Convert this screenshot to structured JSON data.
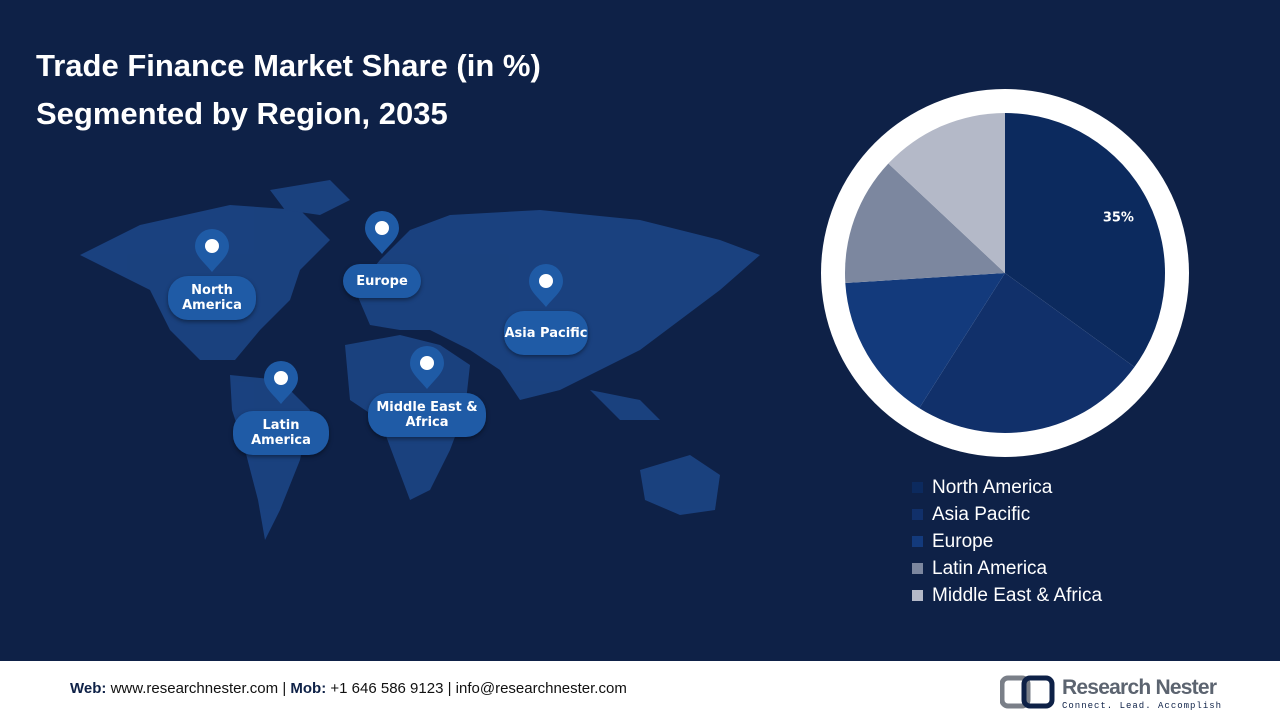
{
  "chart_data": {
    "type": "pie",
    "title": [
      "Trade Finance Market Share (in %)",
      "Segmented by Region, 2035"
    ],
    "categories": [
      "North America",
      "Asia Pacific",
      "Europe",
      "Latin America",
      "Middle East & Africa"
    ],
    "values": [
      35,
      24,
      15,
      13,
      13
    ],
    "value_labels": [
      "35%",
      null,
      null,
      null,
      null
    ],
    "colors": [
      "#0c2a5e",
      "#11306a",
      "#133a7c",
      "#7c879f",
      "#b4b9c8"
    ]
  },
  "map_labels": [
    "North America",
    "Europe",
    "Asia Pacific",
    "Middle East & Africa",
    "Latin America"
  ],
  "footer": {
    "web_label": "Web:",
    "web": "www.researchnester.com",
    "mob_label": "Mob:",
    "mob": "+1 646 586 9123",
    "email": "info@researchnester.com",
    "separator": "|"
  },
  "logo": {
    "name": "Research Nester",
    "tagline": "Connect. Lead. Accomplish"
  }
}
